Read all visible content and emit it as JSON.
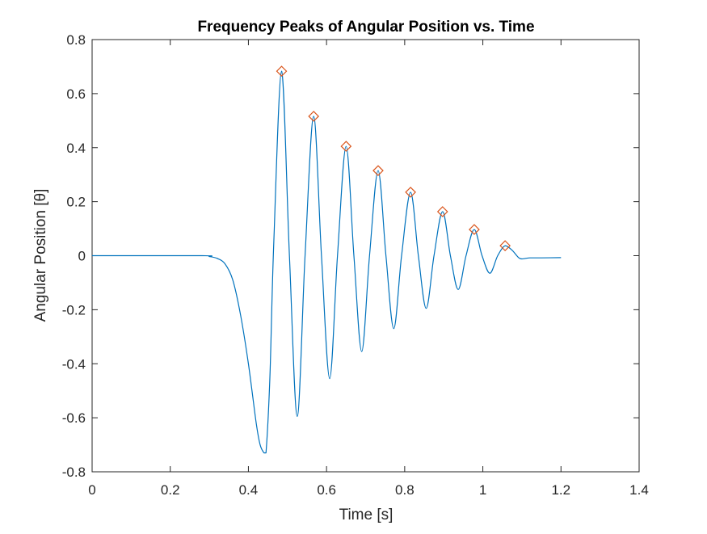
{
  "chart_data": {
    "type": "line",
    "title": "Frequency Peaks of Angular Position vs. Time",
    "xlabel": "Time [s]",
    "ylabel": "Angular Position [θ]",
    "xlim": [
      0,
      1.4
    ],
    "ylim": [
      -0.8,
      0.8
    ],
    "xticks": [
      0,
      0.2,
      0.4,
      0.6,
      0.8,
      1,
      1.2,
      1.4
    ],
    "xtick_labels": [
      "0",
      "0.2",
      "0.4",
      "0.6",
      "0.8",
      "1",
      "1.2",
      "1.4"
    ],
    "yticks": [
      0.8,
      0.6,
      0.4,
      0.2,
      0,
      -0.2,
      -0.4,
      -0.6,
      -0.8
    ],
    "ytick_labels": [
      "0.8",
      "0.6",
      "0.4",
      "0.2",
      "0",
      "-0.2",
      "-0.4",
      "-0.6",
      "-0.8"
    ],
    "grid": false,
    "series": [
      {
        "color": "#0072BD",
        "style": "line",
        "x": [
          0,
          0.28,
          0.3,
          0.32,
          0.34,
          0.36,
          0.38,
          0.4,
          0.42,
          0.43,
          0.44,
          0.445,
          0.455,
          0.465,
          0.485,
          0.505,
          0.525,
          0.545,
          0.567,
          0.587,
          0.608,
          0.628,
          0.65,
          0.67,
          0.69,
          0.71,
          0.732,
          0.752,
          0.772,
          0.792,
          0.815,
          0.835,
          0.855,
          0.875,
          0.897,
          0.917,
          0.937,
          0.957,
          0.978,
          0.998,
          1.018,
          1.038,
          1.057,
          1.075,
          1.09,
          1.1,
          1.12,
          1.15,
          1.2
        ],
        "y": [
          0,
          0,
          -0.003,
          -0.01,
          -0.03,
          -0.09,
          -0.22,
          -0.4,
          -0.62,
          -0.7,
          -0.73,
          -0.73,
          -0.45,
          0.05,
          0.683,
          0.0,
          -0.595,
          0.0,
          0.516,
          0.0,
          -0.455,
          0.0,
          0.405,
          0.0,
          -0.355,
          0.0,
          0.315,
          0.0,
          -0.27,
          0.0,
          0.235,
          0.0,
          -0.195,
          0.0,
          0.163,
          0.0,
          -0.125,
          0.0,
          0.097,
          0.0,
          -0.065,
          0.0,
          0.037,
          0.02,
          -0.005,
          -0.012,
          -0.008,
          -0.008,
          -0.007
        ]
      },
      {
        "color": "#D95319",
        "style": "marker-diamond",
        "x": [
          0.485,
          0.567,
          0.65,
          0.732,
          0.815,
          0.897,
          0.978,
          1.057
        ],
        "y": [
          0.683,
          0.516,
          0.405,
          0.315,
          0.235,
          0.163,
          0.097,
          0.037
        ]
      }
    ]
  }
}
